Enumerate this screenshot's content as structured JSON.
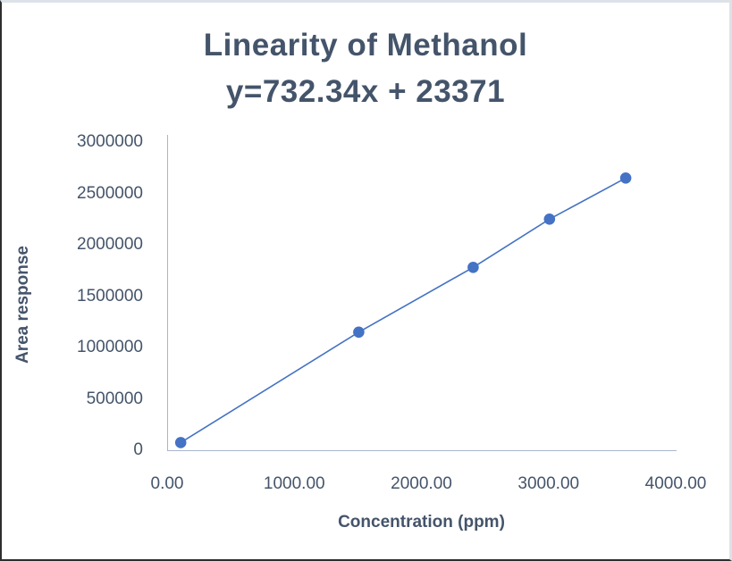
{
  "colors": {
    "series": "#4472C4",
    "text": "#44546A",
    "axis_line": "#A9B5CE",
    "frame_border_light": "#dde1e8",
    "frame_border_dark": "#2e2e2e"
  },
  "chart_data": {
    "type": "line",
    "title": "Linearity of Methanol",
    "subtitle": "y=732.34x + 23371",
    "xlabel": "Concentration (ppm)",
    "ylabel": "Area response",
    "x": [
      100,
      1500,
      2400,
      3000,
      3600
    ],
    "y": [
      75000,
      1150000,
      1780000,
      2250000,
      2650000
    ],
    "xlim": [
      0,
      4000
    ],
    "ylim": [
      0,
      3000000
    ],
    "x_tick_labels": [
      "0.00",
      "1000.00",
      "2000.00",
      "3000.00",
      "4000.00"
    ],
    "y_tick_labels": [
      "0",
      "500000",
      "1000000",
      "1500000",
      "2000000",
      "2500000",
      "3000000"
    ],
    "grid": false,
    "legend": "none",
    "marker": "circle",
    "trendline_equation": "y=732.34x + 23371"
  }
}
